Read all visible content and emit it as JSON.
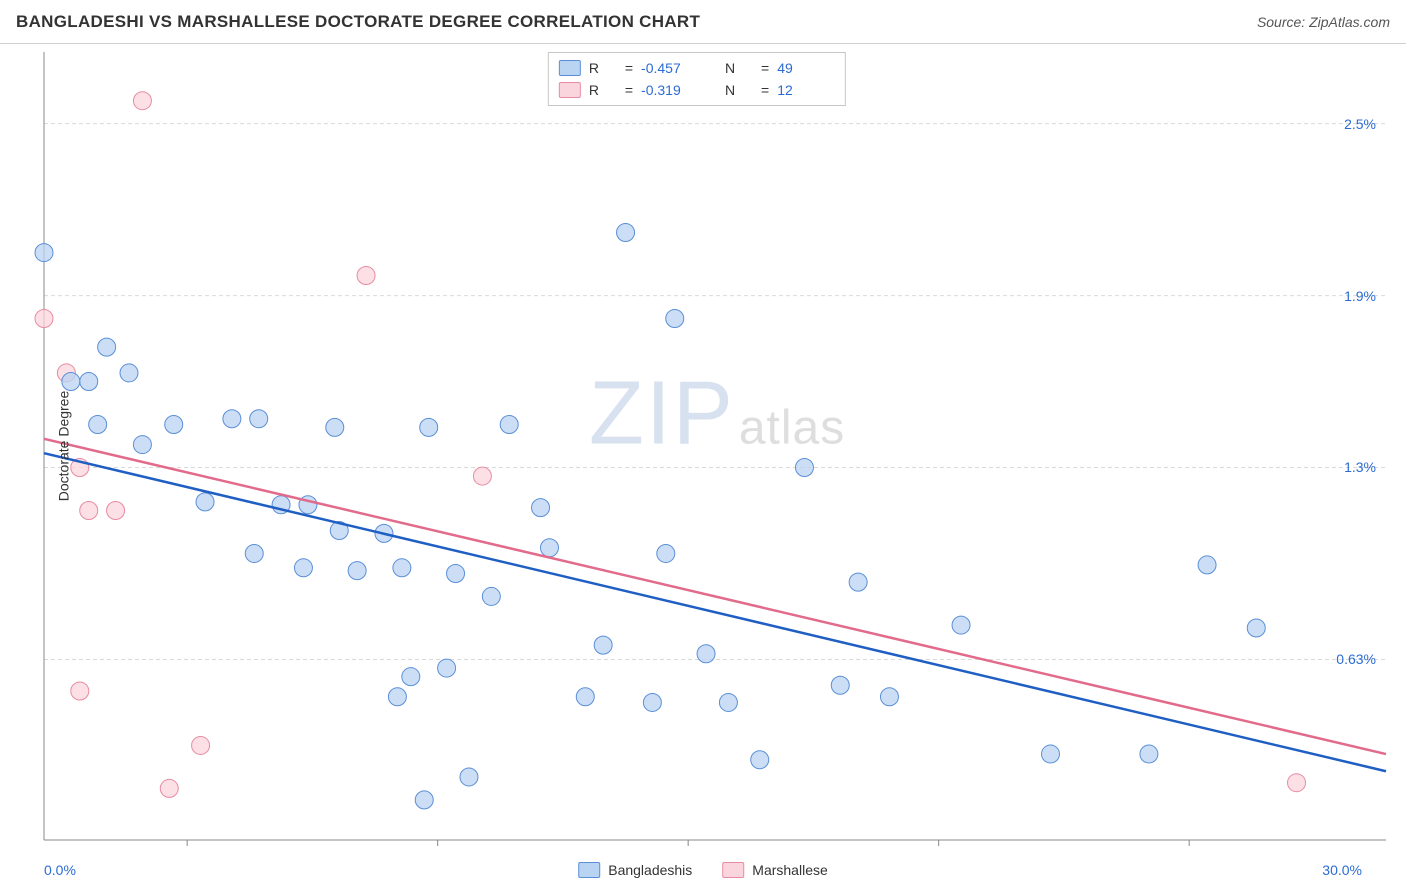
{
  "title": "BANGLADESHI VS MARSHALLESE DOCTORATE DEGREE CORRELATION CHART",
  "source": "Source: ZipAtlas.com",
  "ylabel": "Doctorate Degree",
  "watermark": {
    "zip": "ZIP",
    "atlas": "atlas"
  },
  "chart": {
    "type": "scatter",
    "xlim": [
      0.0,
      30.0
    ],
    "ylim": [
      0.0,
      2.75
    ],
    "x_first_label": "0.0%",
    "x_last_label": "30.0%",
    "yticks": [
      {
        "v": 2.5,
        "label": "2.5%"
      },
      {
        "v": 1.9,
        "label": "1.9%"
      },
      {
        "v": 1.3,
        "label": "1.3%"
      },
      {
        "v": 0.63,
        "label": "0.63%"
      }
    ],
    "gridline_color": "#d9d9d9",
    "axis_color": "#888888",
    "background": "#ffffff",
    "series": [
      {
        "name": "Bangladeshis",
        "fill": "#b9d3f2",
        "stroke": "#5a8fd8",
        "marker_r": 9,
        "R": "-0.457",
        "N": "49",
        "trend": {
          "x1": 0.0,
          "y1": 1.35,
          "x2": 30.0,
          "y2": 0.24,
          "color": "#1f5fc4",
          "width": 2.5
        },
        "points": [
          [
            0.0,
            2.05
          ],
          [
            1.4,
            1.72
          ],
          [
            1.0,
            1.6
          ],
          [
            1.9,
            1.63
          ],
          [
            0.6,
            1.6
          ],
          [
            1.2,
            1.45
          ],
          [
            2.9,
            1.45
          ],
          [
            4.2,
            1.47
          ],
          [
            4.8,
            1.47
          ],
          [
            2.2,
            1.38
          ],
          [
            6.5,
            1.44
          ],
          [
            8.6,
            1.44
          ],
          [
            3.6,
            1.18
          ],
          [
            5.3,
            1.17
          ],
          [
            5.9,
            1.17
          ],
          [
            6.6,
            1.08
          ],
          [
            7.6,
            1.07
          ],
          [
            4.7,
            1.0
          ],
          [
            5.8,
            0.95
          ],
          [
            7.0,
            0.94
          ],
          [
            8.0,
            0.95
          ],
          [
            9.2,
            0.93
          ],
          [
            10.4,
            1.45
          ],
          [
            8.2,
            0.57
          ],
          [
            9.0,
            0.6
          ],
          [
            7.9,
            0.5
          ],
          [
            10.0,
            0.85
          ],
          [
            11.1,
            1.16
          ],
          [
            11.3,
            1.02
          ],
          [
            12.1,
            0.5
          ],
          [
            12.5,
            0.68
          ],
          [
            13.6,
            0.48
          ],
          [
            13.9,
            1.0
          ],
          [
            13.0,
            2.12
          ],
          [
            14.8,
            0.65
          ],
          [
            15.3,
            0.48
          ],
          [
            14.1,
            1.82
          ],
          [
            16.0,
            0.28
          ],
          [
            17.0,
            1.3
          ],
          [
            17.8,
            0.54
          ],
          [
            18.2,
            0.9
          ],
          [
            18.9,
            0.5
          ],
          [
            20.5,
            0.75
          ],
          [
            22.5,
            0.3
          ],
          [
            24.7,
            0.3
          ],
          [
            26.0,
            0.96
          ],
          [
            27.1,
            0.74
          ],
          [
            8.5,
            0.14
          ],
          [
            9.5,
            0.22
          ]
        ]
      },
      {
        "name": "Marshallese",
        "fill": "#fbd5de",
        "stroke": "#e88ba2",
        "marker_r": 9,
        "R": "-0.319",
        "N": "12",
        "trend": {
          "x1": 0.0,
          "y1": 1.4,
          "x2": 30.0,
          "y2": 0.3,
          "color": "#e26a8a",
          "width": 2.5
        },
        "points": [
          [
            2.2,
            2.58
          ],
          [
            0.0,
            1.82
          ],
          [
            0.5,
            1.63
          ],
          [
            0.8,
            1.3
          ],
          [
            1.0,
            1.15
          ],
          [
            1.6,
            1.15
          ],
          [
            7.2,
            1.97
          ],
          [
            3.5,
            0.33
          ],
          [
            0.8,
            0.52
          ],
          [
            2.8,
            0.18
          ],
          [
            9.8,
            1.27
          ],
          [
            28.0,
            0.2
          ]
        ]
      }
    ],
    "xticks_minor": [
      3.2,
      8.8,
      14.4,
      20.0,
      25.6
    ]
  },
  "legend_labels": {
    "R": "R",
    "N": "N",
    "eq": "="
  }
}
